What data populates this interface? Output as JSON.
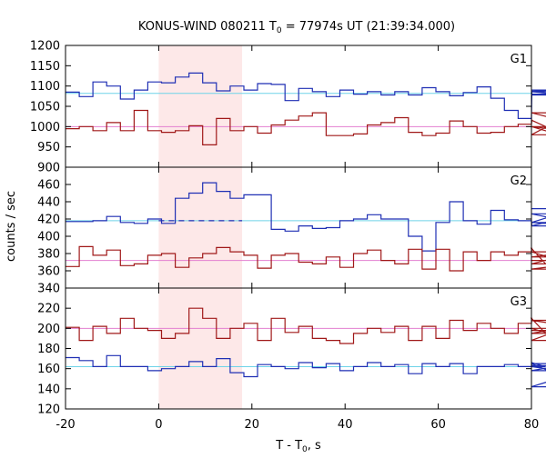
{
  "chart_data": {
    "type": "line",
    "title": "KONUS-WIND 080211 T",
    "title_sub": "0",
    "title_rest": " = 77974s UT (21:39:34.000)",
    "xlabel": "T - T",
    "xlabel_sub": "0",
    "xlabel_rest": ", s",
    "ylabel": "counts / sec",
    "xlim": [
      -20,
      80
    ],
    "xticks": [
      -20,
      0,
      20,
      40,
      60,
      80
    ],
    "highlight": {
      "x0": 0,
      "x1": 17.9,
      "color": "#fde8e8"
    },
    "step": 2.944,
    "x0": -20,
    "colors": {
      "hi": "#1f2fb4",
      "lo": "#a01818",
      "bg_hi": "#6fd3e8",
      "bg_lo": "#e27fd0"
    },
    "panels": [
      {
        "name": "G1",
        "ylim": [
          900,
          1200
        ],
        "yticks": [
          900,
          950,
          1000,
          1050,
          1100,
          1150,
          1200
        ],
        "bg_hi": 1082,
        "bg_lo": 1000,
        "series": [
          {
            "color": "hi",
            "values": [
              1085,
              1074,
              1110,
              1100,
              1068,
              1090,
              1110,
              1108,
              1122,
              1132,
              1108,
              1088,
              1100,
              1090,
              1106,
              1104,
              1064,
              1094,
              1086,
              1074,
              1090,
              1080,
              1086,
              1078,
              1086,
              1078,
              1096,
              1086,
              1076,
              1084,
              1098,
              1070,
              1040,
              1020,
              1088,
              1086,
              1080,
              1078,
              1090,
              1086
            ]
          },
          {
            "color": "lo",
            "values": [
              995,
              1000,
              990,
              1010,
              990,
              1040,
              990,
              986,
              990,
              1002,
              955,
              1020,
              990,
              1000,
              984,
              1004,
              1016,
              1026,
              1034,
              978,
              978,
              982,
              1004,
              1010,
              1022,
              986,
              978,
              984,
              1014,
              1000,
              984,
              986,
              1000,
              1006,
              1016,
              1000,
              980,
              1034,
              1000,
              980
            ]
          }
        ]
      },
      {
        "name": "G2",
        "ylim": [
          340,
          480
        ],
        "yticks": [
          340,
          360,
          380,
          400,
          420,
          440,
          460
        ],
        "bg_hi": 418,
        "bg_lo": 372,
        "dashed": {
          "x0": 0,
          "x1": 17.9,
          "y": 418
        },
        "series": [
          {
            "color": "hi",
            "values": [
              417,
              417,
              418,
              423,
              416,
              415,
              420,
              415,
              444,
              450,
              462,
              452,
              444,
              448,
              448,
              408,
              406,
              412,
              409,
              410,
              418,
              420,
              425,
              420,
              420,
              400,
              383,
              416,
              440,
              418,
              414,
              430,
              419,
              418,
              412,
              416,
              426,
              416,
              412,
              432
            ]
          },
          {
            "color": "lo",
            "values": [
              365,
              388,
              378,
              384,
              366,
              368,
              378,
              380,
              364,
              375,
              380,
              387,
              382,
              378,
              363,
              378,
              380,
              370,
              368,
              376,
              364,
              380,
              384,
              372,
              368,
              385,
              362,
              385,
              360,
              382,
              372,
              382,
              378,
              382,
              386,
              368,
              376,
              382,
              362,
              372
            ]
          }
        ]
      },
      {
        "name": "G3",
        "ylim": [
          120,
          240
        ],
        "yticks": [
          120,
          140,
          160,
          180,
          200,
          220
        ],
        "bg_hi": 162,
        "bg_lo": 200,
        "series": [
          {
            "color": "hi",
            "values": [
              171,
              168,
              162,
              173,
              162,
              162,
              158,
              160,
              162,
              167,
              162,
              170,
              156,
              152,
              164,
              162,
              160,
              166,
              161,
              165,
              158,
              162,
              166,
              162,
              164,
              155,
              165,
              162,
              165,
              155,
              162,
              162,
              164,
              162,
              166,
              162,
              158,
              165,
              142,
              163
            ]
          },
          {
            "color": "lo",
            "values": [
              201,
              188,
              202,
              195,
              210,
              200,
              198,
              190,
              195,
              220,
              210,
              190,
              200,
              205,
              188,
              210,
              196,
              202,
              190,
              188,
              185,
              195,
              200,
              196,
              202,
              188,
              202,
              190,
              208,
              198,
              205,
              200,
              195,
              205,
              210,
              195,
              200,
              188,
              208,
              198
            ]
          }
        ]
      }
    ]
  }
}
